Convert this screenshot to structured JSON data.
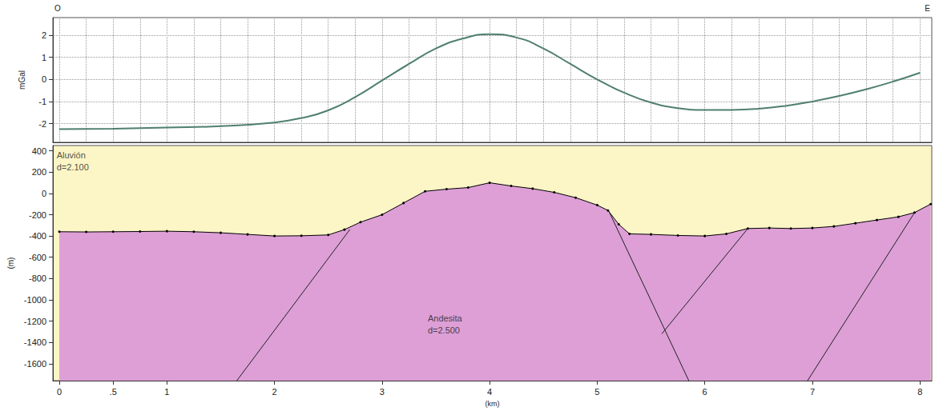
{
  "chart_data": [
    {
      "type": "line",
      "direction_labels": [
        "O",
        "E"
      ],
      "y_label": "mGal",
      "x": [
        0,
        0.5,
        1,
        1.5,
        2,
        2.25,
        2.5,
        2.75,
        3,
        3.25,
        3.5,
        3.75,
        4,
        4.25,
        4.5,
        4.75,
        5,
        5.25,
        5.5,
        5.75,
        6,
        6.25,
        6.5,
        6.75,
        7,
        7.25,
        7.5,
        7.75,
        8
      ],
      "values": [
        -2.25,
        -2.23,
        -2.18,
        -2.12,
        -1.95,
        -1.75,
        -1.4,
        -0.8,
        -0.05,
        0.7,
        1.4,
        1.85,
        2.05,
        1.9,
        1.4,
        0.7,
        0.0,
        -0.6,
        -1.05,
        -1.3,
        -1.38,
        -1.38,
        -1.33,
        -1.2,
        -1.0,
        -0.75,
        -0.45,
        -0.1,
        0.3
      ],
      "color": "#4f7f6f",
      "xlim": [
        -0.06,
        8.11
      ],
      "xticks": [
        0,
        0.25,
        0.5,
        0.75,
        1,
        1.25,
        1.5,
        1.75,
        2,
        2.25,
        2.5,
        2.75,
        3,
        3.25,
        3.5,
        3.75,
        4,
        4.25,
        4.5,
        4.75,
        5,
        5.25,
        5.5,
        5.75,
        6,
        6.25,
        6.5,
        6.75,
        7,
        7.25,
        7.5,
        7.75,
        8
      ],
      "ylim": [
        -2.85,
        2.8
      ],
      "yticks": [
        -2,
        -1,
        0,
        1,
        2
      ],
      "grid": true,
      "tick_labels": "y"
    },
    {
      "type": "line",
      "x_label": "(km)",
      "y_label": "(m)",
      "x": [
        0,
        0.25,
        0.5,
        0.75,
        1,
        1.25,
        1.5,
        1.75,
        2,
        2.25,
        2.5,
        2.65,
        2.8,
        3,
        3.2,
        3.4,
        3.6,
        3.8,
        4,
        4.2,
        4.4,
        4.6,
        4.8,
        5,
        5.1,
        5.2,
        5.3,
        5.5,
        5.75,
        6,
        6.2,
        6.4,
        6.6,
        6.8,
        7,
        7.2,
        7.4,
        7.6,
        7.8,
        7.95,
        8.1
      ],
      "values": [
        -360,
        -362,
        -360,
        -358,
        -355,
        -360,
        -370,
        -385,
        -400,
        -398,
        -390,
        -340,
        -270,
        -200,
        -90,
        20,
        40,
        55,
        100,
        70,
        45,
        10,
        -40,
        -110,
        -160,
        -290,
        -380,
        -385,
        -395,
        -400,
        -380,
        -330,
        -325,
        -330,
        -325,
        -310,
        -280,
        -250,
        -220,
        -180,
        -100
      ],
      "color": "#000000",
      "marker": "circle",
      "xlim": [
        -0.06,
        8.11
      ],
      "xticks": [
        0,
        {
          "value": 0.5,
          "label": ".5"
        },
        1,
        2,
        3,
        4,
        5,
        6,
        7,
        8
      ],
      "ylim": [
        -1760,
        450
      ],
      "yticks": [
        -1600,
        -1400,
        -1200,
        -1000,
        -800,
        -600,
        -400,
        -200,
        0,
        200,
        400
      ],
      "grid": false,
      "layers": [
        {
          "lines": [
            "Aluvión",
            "d=2.100"
          ],
          "color": "#fcf5c6",
          "label_x": -0.04,
          "label_y": 300
        },
        {
          "lines": [
            "Andesita",
            "d=2.500"
          ],
          "color": "#dd9fd6",
          "label_x": 3.41,
          "label_y": -1230
        }
      ],
      "faults": [
        {
          "x": [
            1.62,
            2.7
          ],
          "y": [
            -1800,
            -340
          ]
        },
        {
          "x": [
            5.1,
            5.87
          ],
          "y": [
            -150,
            -1800
          ]
        },
        {
          "x": [
            5.6,
            6.4
          ],
          "y": [
            -1320,
            -330
          ]
        },
        {
          "x": [
            6.93,
            7.95
          ],
          "y": [
            -1800,
            -180
          ]
        }
      ]
    }
  ]
}
